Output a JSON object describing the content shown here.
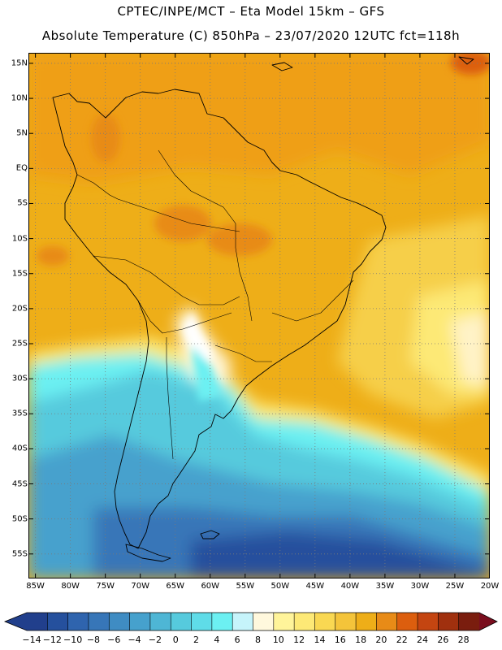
{
  "header": {
    "line1": "CPTEC/INPE/MCT –  Eta Model 15km – GFS",
    "line2": "Absolute Temperature (C) 850hPa – 23/07/2020 12UTC fct=118h"
  },
  "map": {
    "lat_labels": [
      "15N",
      "10N",
      "5N",
      "EQ",
      "5S",
      "10S",
      "15S",
      "20S",
      "25S",
      "30S",
      "35S",
      "40S",
      "45S",
      "50S",
      "55S"
    ],
    "lat_values": [
      15,
      10,
      5,
      0,
      -5,
      -10,
      -15,
      -20,
      -25,
      -30,
      -35,
      -40,
      -45,
      -50,
      -55
    ],
    "lon_labels": [
      "85W",
      "80W",
      "75W",
      "70W",
      "65W",
      "60W",
      "55W",
      "50W",
      "45W",
      "40W",
      "35W",
      "30W",
      "25W",
      "20W"
    ],
    "lon_values": [
      -85,
      -80,
      -75,
      -70,
      -65,
      -60,
      -55,
      -50,
      -45,
      -40,
      -35,
      -30,
      -25,
      -20
    ],
    "lat_range": [
      -58.5,
      16.5
    ],
    "lon_range": [
      -86,
      -20
    ]
  },
  "colorbar": {
    "labels": [
      "-14",
      "-12",
      "-10",
      "-8",
      "-6",
      "-4",
      "-2",
      "0",
      "2",
      "4",
      "6",
      "8",
      "10",
      "12",
      "14",
      "16",
      "18",
      "20",
      "22",
      "24",
      "26",
      "28"
    ],
    "colors": [
      "#213f8c",
      "#25509d",
      "#2f64ae",
      "#3776b8",
      "#3f8cc3",
      "#46a1cd",
      "#4eb6d5",
      "#56cadd",
      "#5fdce8",
      "#6cf0f2",
      "#c6f4fb",
      "#fff8dd",
      "#fff49a",
      "#fde976",
      "#f9d852",
      "#f4c43a",
      "#eeae18",
      "#e88b17",
      "#dc5e0e",
      "#c44511",
      "#a0300e",
      "#7a1d0e"
    ]
  }
}
